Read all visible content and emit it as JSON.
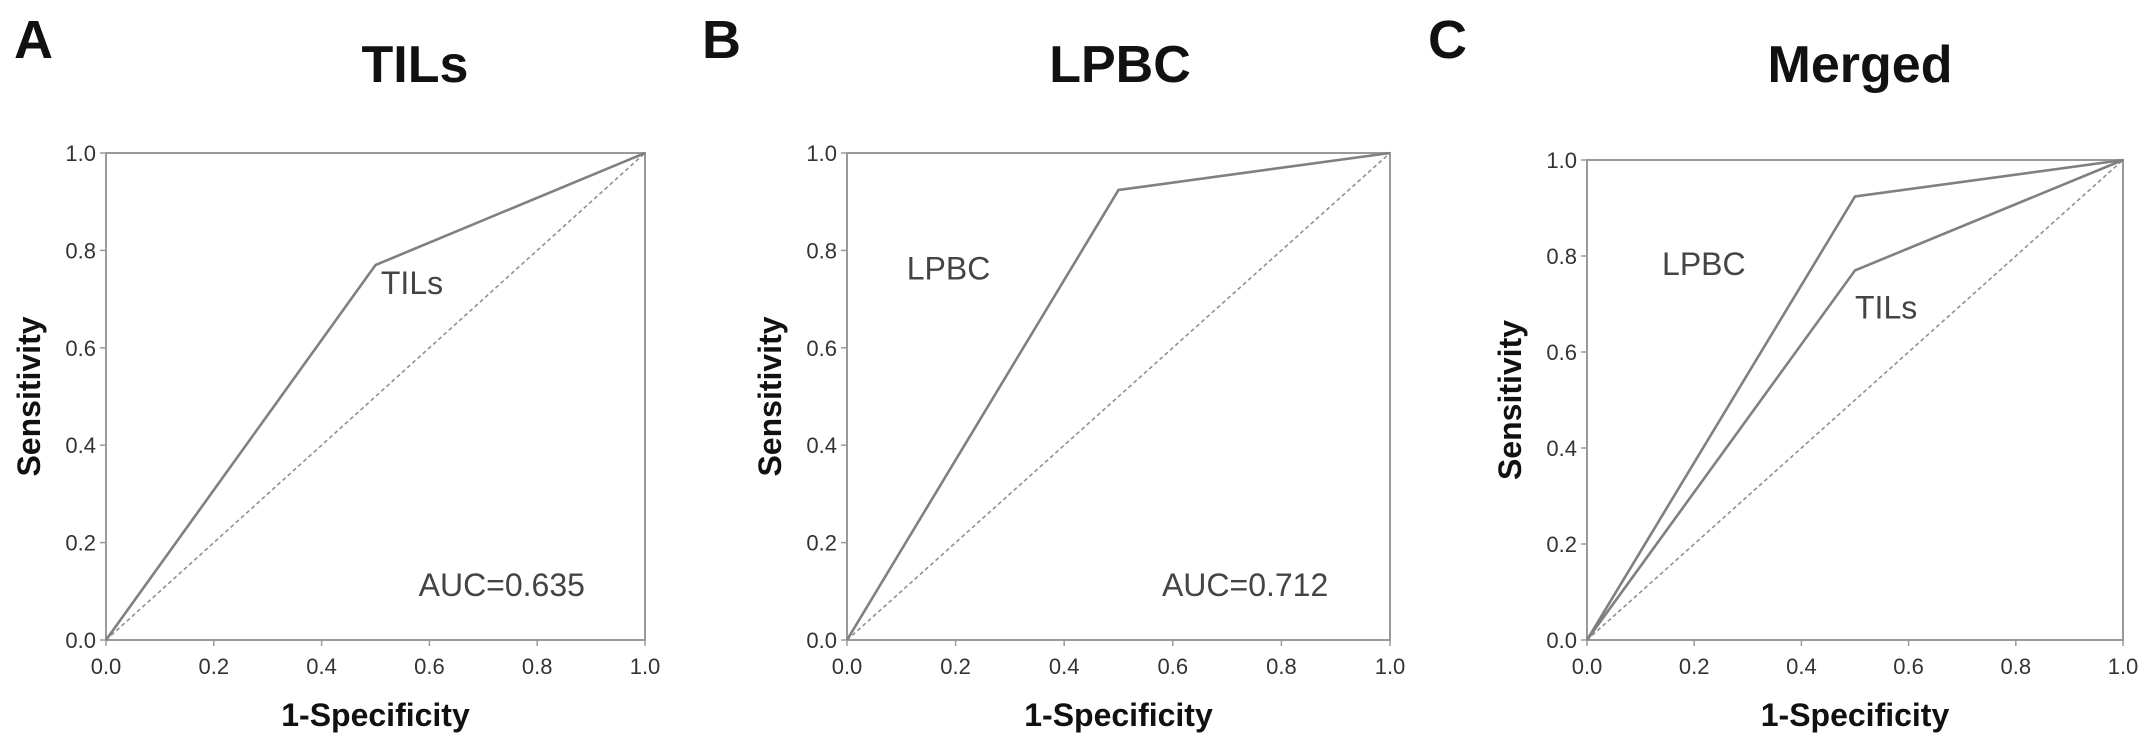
{
  "chart_data": [
    {
      "type": "line",
      "panel": "A",
      "title": "TILs",
      "xlabel": "1-Specificity",
      "ylabel": "Sensitivity",
      "xlim": [
        0,
        1
      ],
      "ylim": [
        0,
        1
      ],
      "xticks": [
        "0.0",
        "0.2",
        "0.4",
        "0.6",
        "0.8",
        "1.0"
      ],
      "yticks": [
        "0.0",
        "0.2",
        "0.4",
        "0.6",
        "0.8",
        "1.0"
      ],
      "grid": false,
      "series": [
        {
          "name": "TILs",
          "color": "#808080",
          "x": [
            0.0,
            0.5,
            1.0
          ],
          "y": [
            0.0,
            0.77,
            1.0
          ]
        }
      ],
      "reference": {
        "color": "#909090",
        "x": [
          0,
          1
        ],
        "y": [
          0,
          1
        ]
      },
      "labels": [
        {
          "text": "TILs",
          "x": 0.51,
          "y": 0.71
        },
        {
          "text": "AUC=0.635",
          "x": 0.58,
          "y": 0.09
        }
      ]
    },
    {
      "type": "line",
      "panel": "B",
      "title": "LPBC",
      "xlabel": "1-Specificity",
      "ylabel": "Sensitivity",
      "xlim": [
        0,
        1
      ],
      "ylim": [
        0,
        1
      ],
      "xticks": [
        "0.0",
        "0.2",
        "0.4",
        "0.6",
        "0.8",
        "1.0"
      ],
      "yticks": [
        "0.0",
        "0.2",
        "0.4",
        "0.6",
        "0.8",
        "1.0"
      ],
      "grid": false,
      "series": [
        {
          "name": "LPBC",
          "color": "#808080",
          "x": [
            0.0,
            0.5,
            1.0
          ],
          "y": [
            0.0,
            0.924,
            1.0
          ]
        }
      ],
      "reference": {
        "color": "#909090",
        "x": [
          0,
          1
        ],
        "y": [
          0,
          1
        ]
      },
      "labels": [
        {
          "text": "LPBC",
          "x": 0.11,
          "y": 0.74
        },
        {
          "text": "AUC=0.712",
          "x": 0.58,
          "y": 0.09
        }
      ]
    },
    {
      "type": "line",
      "panel": "C",
      "title": "Merged",
      "xlabel": "1-Specificity",
      "ylabel": "Sensitivity",
      "xlim": [
        0,
        1
      ],
      "ylim": [
        0,
        1
      ],
      "xticks": [
        "0.0",
        "0.2",
        "0.4",
        "0.6",
        "0.8",
        "1.0"
      ],
      "yticks": [
        "0.0",
        "0.2",
        "0.4",
        "0.6",
        "0.8",
        "1.0"
      ],
      "grid": false,
      "series": [
        {
          "name": "LPBC",
          "color": "#808080",
          "x": [
            0.0,
            0.5,
            1.0
          ],
          "y": [
            0.0,
            0.924,
            1.0
          ]
        },
        {
          "name": "TILs",
          "color": "#808080",
          "x": [
            0.0,
            0.5,
            1.0
          ],
          "y": [
            0.0,
            0.77,
            1.0
          ]
        }
      ],
      "reference": {
        "color": "#909090",
        "x": [
          0,
          1
        ],
        "y": [
          0,
          1
        ]
      },
      "labels": [
        {
          "text": "LPBC",
          "x": 0.14,
          "y": 0.76
        },
        {
          "text": "TILs",
          "x": 0.5,
          "y": 0.67
        }
      ]
    }
  ]
}
